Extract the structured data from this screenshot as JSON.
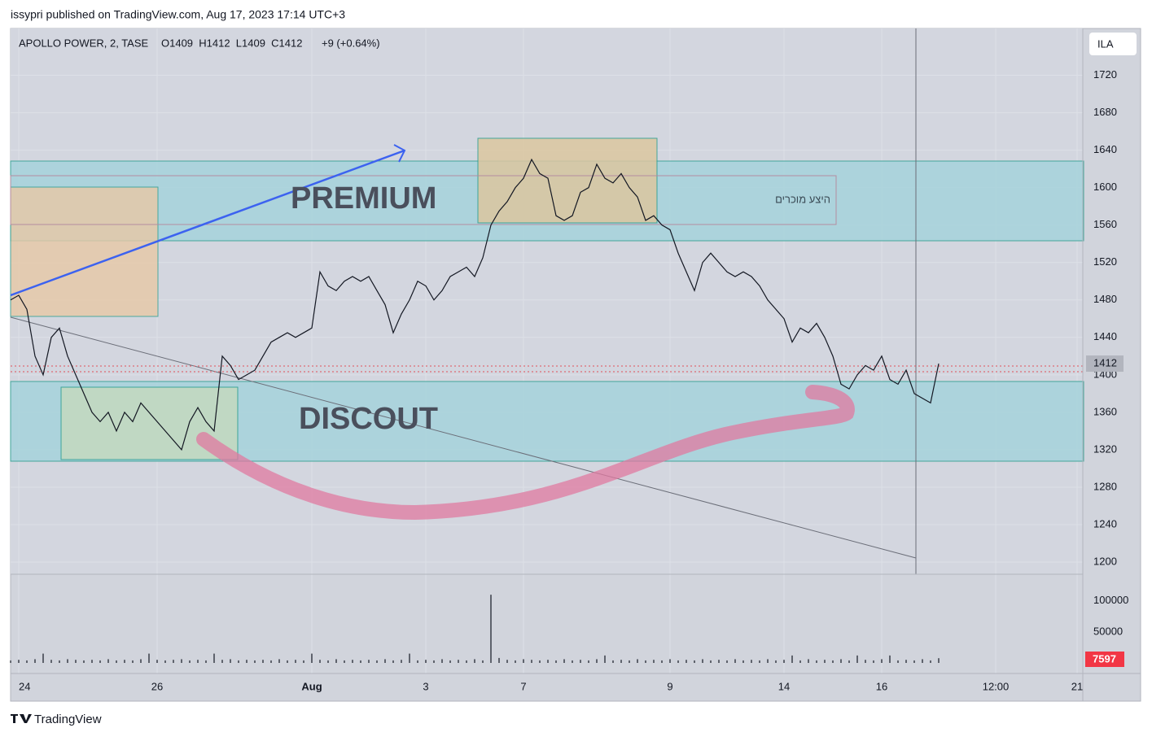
{
  "header": {
    "title": "issypri published on TradingView.com, Aug 17, 2023 17:14 UTC+3"
  },
  "footer": {
    "brand": "TradingView"
  },
  "chart_data": [
    {
      "type": "line",
      "title": "APOLLO POWER, 2, TASE",
      "ohlc": "O1409  H1412  L1409  C1412",
      "change": "+9 (+0.64%)",
      "currency": "ILA",
      "annotations": [
        "PREMIUM",
        "DISCOUT",
        "היצע מוכרים"
      ],
      "color": "#131722",
      "grid": true,
      "ylim": [
        1187,
        1770
      ],
      "yticks": [
        1200,
        1240,
        1280,
        1320,
        1360,
        1400,
        1440,
        1480,
        1520,
        1560,
        1600,
        1640,
        1680,
        1720
      ],
      "categories": [
        null,
        "24",
        null,
        null,
        null,
        null,
        null,
        null,
        null,
        null,
        null,
        null,
        null,
        null,
        null,
        null,
        null,
        null,
        "26",
        null,
        null,
        null,
        null,
        null,
        null,
        null,
        null,
        null,
        null,
        null,
        null,
        null,
        null,
        null,
        null,
        null,
        null,
        "Aug",
        null,
        null,
        null,
        null,
        null,
        null,
        null,
        null,
        null,
        null,
        null,
        null,
        null,
        "3",
        null,
        null,
        null,
        null,
        null,
        null,
        null,
        null,
        null,
        null,
        null,
        "7",
        null,
        null,
        null,
        null,
        null,
        null,
        null,
        null,
        null,
        null,
        null,
        null,
        null,
        null,
        null,
        null,
        null,
        "9",
        null,
        null,
        null,
        null,
        null,
        null,
        null,
        null,
        null,
        null,
        null,
        null,
        null,
        "14",
        null,
        null,
        null,
        null,
        null,
        null,
        null,
        null,
        null,
        null,
        null,
        "16",
        null,
        null,
        null,
        null,
        null,
        null,
        null,
        null,
        null,
        null,
        null,
        null,
        null,
        "12:00",
        null,
        null,
        null,
        null,
        null,
        null,
        null,
        null,
        null,
        "21"
      ],
      "values": [
        1480,
        1485,
        1470,
        1420,
        1400,
        1440,
        1450,
        1420,
        1400,
        1380,
        1360,
        1350,
        1360,
        1340,
        1360,
        1350,
        1370,
        1360,
        1350,
        1340,
        1330,
        1320,
        1350,
        1365,
        1350,
        1340,
        1420,
        1410,
        1395,
        1400,
        1405,
        1420,
        1435,
        1440,
        1445,
        1440,
        1445,
        1450,
        1510,
        1495,
        1490,
        1500,
        1505,
        1500,
        1505,
        1490,
        1475,
        1445,
        1465,
        1480,
        1500,
        1495,
        1480,
        1490,
        1505,
        1510,
        1515,
        1505,
        1525,
        1560,
        1575,
        1585,
        1600,
        1610,
        1630,
        1615,
        1610,
        1570,
        1565,
        1570,
        1595,
        1600,
        1625,
        1610,
        1605,
        1615,
        1600,
        1590,
        1565,
        1570,
        1560,
        1555,
        1530,
        1510,
        1490,
        1520,
        1530,
        1520,
        1510,
        1505,
        1510,
        1505,
        1495,
        1480,
        1470,
        1460,
        1435,
        1450,
        1445,
        1455,
        1440,
        1420,
        1390,
        1385,
        1400,
        1410,
        1405,
        1420,
        1395,
        1390,
        1405,
        1380,
        1375,
        1370,
        1412,
        null,
        null,
        null,
        null,
        null,
        null,
        null,
        null,
        null,
        null,
        null,
        null,
        null,
        null,
        null,
        null,
        null
      ]
    },
    {
      "type": "bar",
      "color": "#131722",
      "ylim": [
        0,
        143000
      ],
      "yticks": [
        50000,
        100000
      ],
      "values": [
        4000,
        5000,
        4000,
        6000,
        15000,
        5000,
        4000,
        6000,
        5000,
        4000,
        5000,
        4000,
        6000,
        4000,
        5000,
        4000,
        6000,
        15000,
        5000,
        4000,
        5000,
        6000,
        4000,
        5000,
        4000,
        15000,
        5000,
        6000,
        4000,
        5000,
        4000,
        5000,
        4000,
        6000,
        4000,
        5000,
        4000,
        15000,
        5000,
        4000,
        6000,
        4000,
        5000,
        4000,
        5000,
        4000,
        6000,
        4000,
        5000,
        15000,
        4000,
        5000,
        4000,
        6000,
        4000,
        5000,
        4000,
        6000,
        4000,
        110000,
        8000,
        5000,
        4000,
        6000,
        5000,
        4000,
        5000,
        4000,
        6000,
        4000,
        5000,
        4000,
        6000,
        12000,
        4000,
        5000,
        4000,
        6000,
        4000,
        5000,
        4000,
        6000,
        4000,
        5000,
        4000,
        6000,
        4000,
        5000,
        4000,
        6000,
        4000,
        5000,
        4000,
        6000,
        4000,
        5000,
        12000,
        4000,
        6000,
        4000,
        5000,
        4000,
        6000,
        4000,
        12000,
        5000,
        4000,
        6000,
        12000,
        4000,
        5000,
        4000,
        6000,
        4000,
        7597,
        null,
        null,
        null,
        null,
        null,
        null,
        null,
        null,
        null,
        null,
        null,
        null,
        null,
        null,
        null,
        null,
        null
      ]
    }
  ]
}
